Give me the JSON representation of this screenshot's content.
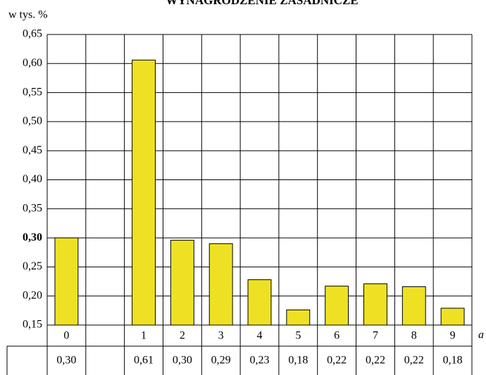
{
  "chart_data": {
    "type": "bar",
    "title": "WYNAGRODZENIE ZASADNICZE",
    "ylabel": "w tys. %",
    "xlabel": "a",
    "categories": [
      "0",
      null,
      "1",
      "2",
      "3",
      "4",
      "5",
      "6",
      "7",
      "8",
      "9"
    ],
    "values": [
      0.3,
      null,
      0.606,
      0.296,
      0.29,
      0.228,
      0.176,
      0.217,
      0.221,
      0.216,
      0.179
    ],
    "value_labels": [
      "0,30",
      null,
      "0,61",
      "0,30",
      "0,29",
      "0,23",
      "0,18",
      "0,22",
      "0,22",
      "0,22",
      "0,18"
    ],
    "color": "#eee124",
    "ylim": [
      0.15,
      0.65
    ],
    "yticks": [
      {
        "value": 0.15,
        "label": "0,15"
      },
      {
        "value": 0.2,
        "label": "0,20"
      },
      {
        "value": 0.25,
        "label": "0,25"
      },
      {
        "value": 0.3,
        "label": "0,30",
        "bold": true
      },
      {
        "value": 0.35,
        "label": "0,35"
      },
      {
        "value": 0.4,
        "label": "0,40"
      },
      {
        "value": 0.45,
        "label": "0,45"
      },
      {
        "value": 0.5,
        "label": "0,50"
      },
      {
        "value": 0.55,
        "label": "0,55"
      },
      {
        "value": 0.6,
        "label": "0,60"
      },
      {
        "value": 0.65,
        "label": "0,65"
      }
    ],
    "grid": true
  }
}
